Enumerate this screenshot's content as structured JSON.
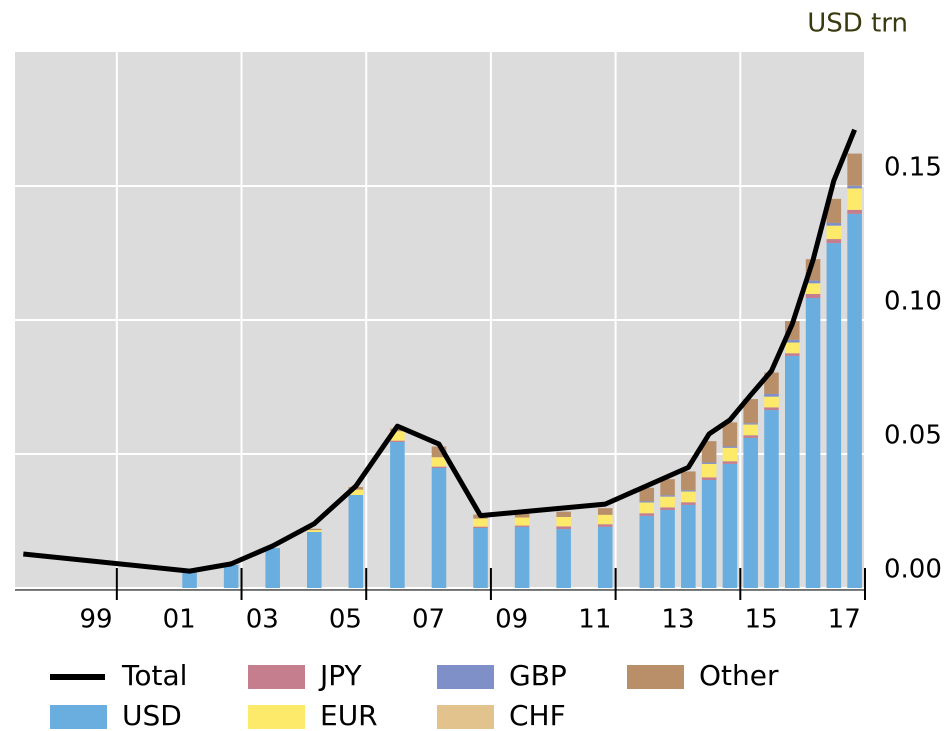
{
  "chart_data": {
    "type": "bar",
    "stacked": true,
    "unit_label": "USD trn",
    "xlim": [
      1997.55,
      2018
    ],
    "ylim": [
      0,
      0.2
    ],
    "xticks": [
      {
        "value": 1999.5,
        "label": "99"
      },
      {
        "value": 2001.5,
        "label": "01"
      },
      {
        "value": 2003.5,
        "label": "03"
      },
      {
        "value": 2005.5,
        "label": "05"
      },
      {
        "value": 2007.5,
        "label": "07"
      },
      {
        "value": 2009.5,
        "label": "09"
      },
      {
        "value": 2011.5,
        "label": "11"
      },
      {
        "value": 2013.5,
        "label": "13"
      },
      {
        "value": 2015.5,
        "label": "15"
      },
      {
        "value": 2017.5,
        "label": "17"
      }
    ],
    "xgrid": [
      2000,
      2003,
      2006,
      2009,
      2012,
      2015,
      2018
    ],
    "yticks": [
      {
        "value": 0,
        "label": "0.00"
      },
      {
        "value": 0.05,
        "label": "0.05"
      },
      {
        "value": 0.1,
        "label": "0.10"
      },
      {
        "value": 0.15,
        "label": "0.15"
      }
    ],
    "grid": true,
    "x": [
      2001.75,
      2002.75,
      2003.75,
      2004.75,
      2005.75,
      2006.75,
      2007.75,
      2008.75,
      2009.75,
      2010.75,
      2011.75,
      2012.75,
      2013.25,
      2013.75,
      2014.25,
      2014.75,
      2015.25,
      2015.75,
      2016.25,
      2016.75,
      2017.25,
      2017.75
    ],
    "series": [
      {
        "name": "USD",
        "color": "#6aaee0",
        "values": [
          0.0063,
          0.0086,
          0.0149,
          0.0209,
          0.0347,
          0.0545,
          0.0448,
          0.0224,
          0.0228,
          0.022,
          0.0228,
          0.0269,
          0.0291,
          0.031,
          0.0403,
          0.0463,
          0.056,
          0.0664,
          0.0866,
          0.1082,
          0.1287,
          0.1396
        ]
      },
      {
        "name": "JPY",
        "color": "#c47e8e",
        "values": [
          0,
          0,
          0,
          0,
          0,
          0.0005,
          0.0005,
          0.0005,
          0.0005,
          0.001,
          0.001,
          0.001,
          0.001,
          0.001,
          0.001,
          0.001,
          0.001,
          0.001,
          0.001,
          0.0015,
          0.0015,
          0.0015
        ]
      },
      {
        "name": "EUR",
        "color": "#fde96a",
        "values": [
          0,
          0,
          0,
          0.0007,
          0.002,
          0.0035,
          0.0035,
          0.003,
          0.003,
          0.0035,
          0.0035,
          0.004,
          0.004,
          0.004,
          0.005,
          0.005,
          0.004,
          0.004,
          0.004,
          0.004,
          0.005,
          0.008
        ]
      },
      {
        "name": "GBP",
        "color": "#7f8fc8",
        "values": [
          0,
          0,
          0,
          0,
          0,
          0,
          0,
          0,
          0,
          0,
          0,
          0.0005,
          0.0005,
          0.0005,
          0.0005,
          0.0005,
          0.0005,
          0.001,
          0.001,
          0.001,
          0.001,
          0.001
        ]
      },
      {
        "name": "CHF",
        "color": "#e2c38d",
        "values": [
          0,
          0,
          0,
          0,
          0,
          0,
          0,
          0,
          0,
          0,
          0,
          0,
          0,
          0,
          0,
          0,
          0,
          0,
          0,
          0,
          0,
          0
        ]
      },
      {
        "name": "Other",
        "color": "#b98f6a",
        "values": [
          0,
          0,
          0,
          0.0005,
          0.001,
          0.001,
          0.004,
          0.0015,
          0.002,
          0.002,
          0.0025,
          0.005,
          0.006,
          0.007,
          0.008,
          0.009,
          0.009,
          0.008,
          0.007,
          0.008,
          0.009,
          0.012
        ]
      }
    ],
    "line": {
      "name": "Total",
      "color": "#000000",
      "x": [
        1997.75,
        2001.75,
        2002.75,
        2003.75,
        2004.75,
        2005.75,
        2006.75,
        2007.75,
        2008.75,
        2011.75,
        2013.75,
        2014.25,
        2014.75,
        2015.25,
        2015.75,
        2016.25,
        2016.75,
        2017.25,
        2017.75
      ],
      "values": [
        0.0127,
        0.0063,
        0.009,
        0.0157,
        0.024,
        0.038,
        0.0604,
        0.0537,
        0.027,
        0.0313,
        0.045,
        0.0575,
        0.0627,
        0.072,
        0.081,
        0.0985,
        0.1224,
        0.152,
        0.171
      ]
    }
  }
}
